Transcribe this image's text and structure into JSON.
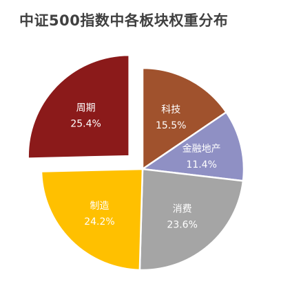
{
  "chart_data": {
    "type": "pie",
    "title": "中证500指数中各板块权重分布",
    "categories": [
      "科技",
      "金融地产",
      "消费",
      "制造",
      "周期"
    ],
    "values": [
      15.5,
      11.4,
      23.6,
      24.2,
      25.4
    ],
    "value_labels": [
      "15.5%",
      "11.4%",
      "23.6%",
      "24.2%",
      "25.4%"
    ],
    "colors": [
      "#A0522D",
      "#8F90C4",
      "#A5A5A5",
      "#FFC000",
      "#8B1A1A"
    ],
    "exploded": [
      "周期"
    ],
    "start": "12 o'clock, clockwise",
    "legend": "none"
  }
}
